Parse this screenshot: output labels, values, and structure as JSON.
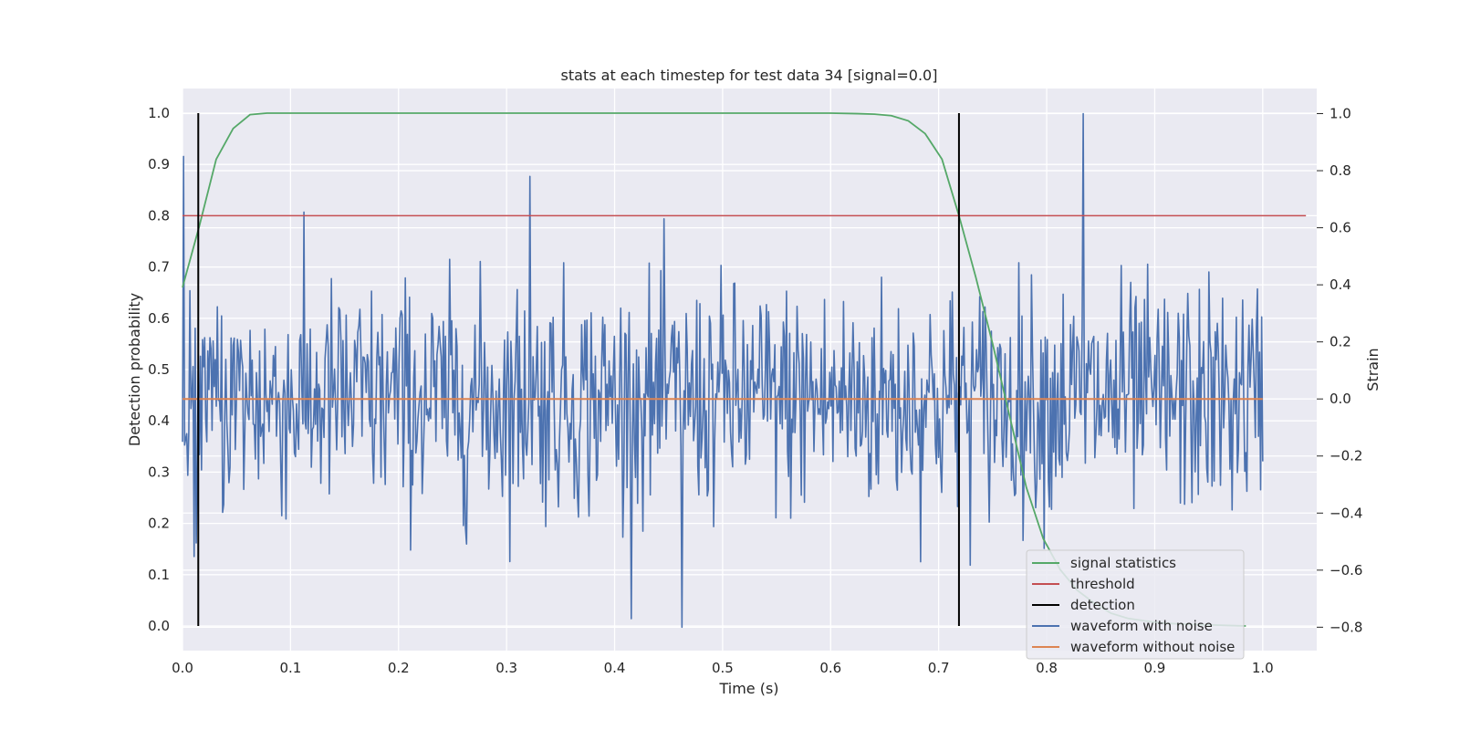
{
  "chart_data": {
    "type": "line",
    "title": "stats at each timestep for test data 34 [signal=0.0]",
    "xlabel": "Time (s)",
    "ylabel": "Detection probability",
    "y2label": "Strain",
    "xlim": [
      0.0,
      1.05
    ],
    "ylim": [
      -0.048,
      1.048
    ],
    "y2lim": [
      -0.882,
      1.088
    ],
    "xticks": [
      "0.0",
      "0.1",
      "0.2",
      "0.3",
      "0.4",
      "0.5",
      "0.6",
      "0.7",
      "0.8",
      "0.9",
      "1.0"
    ],
    "yticks": [
      "0.0",
      "0.1",
      "0.2",
      "0.3",
      "0.4",
      "0.5",
      "0.6",
      "0.7",
      "0.8",
      "0.9",
      "1.0"
    ],
    "y2ticks": [
      "−0.8",
      "−0.6",
      "−0.4",
      "−0.2",
      "0.0",
      "0.2",
      "0.4",
      "0.6",
      "0.8",
      "1.0"
    ],
    "grid": true,
    "legend_position": "lower-right",
    "series": [
      {
        "name": "signal statistics",
        "axis": "left",
        "color": "#55a868",
        "x": [
          0.0,
          0.0156,
          0.0312,
          0.0469,
          0.0625,
          0.0781,
          0.1,
          0.2,
          0.3,
          0.4,
          0.5,
          0.6,
          0.625,
          0.6406,
          0.6562,
          0.6719,
          0.6875,
          0.7031,
          0.7188,
          0.7344,
          0.75,
          0.7656,
          0.7812,
          0.7969,
          0.8125,
          0.8281,
          0.8438,
          0.8594,
          0.875,
          0.8906,
          0.9062,
          0.9219,
          0.9375,
          0.9531,
          0.9688,
          0.9844
        ],
        "y": [
          0.66,
          0.78,
          0.91,
          0.97,
          0.997,
          1.0,
          1.0,
          1.0,
          1.0,
          1.0,
          1.0,
          1.0,
          0.999,
          0.998,
          0.995,
          0.985,
          0.96,
          0.91,
          0.8,
          0.68,
          0.55,
          0.41,
          0.27,
          0.17,
          0.11,
          0.07,
          0.045,
          0.025,
          0.015,
          0.01,
          0.006,
          0.004,
          0.003,
          0.002,
          0.001,
          0.0
        ]
      },
      {
        "name": "threshold",
        "axis": "left",
        "color": "#c44e52",
        "x": [
          0.0,
          1.04
        ],
        "y": [
          0.8,
          0.8
        ]
      },
      {
        "name": "detection",
        "axis": "left",
        "color": "#000000",
        "segments": [
          {
            "x": 0.0146,
            "y0": 0.0,
            "y1": 1.0
          },
          {
            "x": 0.7188,
            "y0": 0.0,
            "y1": 1.0
          }
        ]
      },
      {
        "name": "waveform with noise",
        "axis": "right",
        "color": "#4c72b0",
        "x_start": 0.0,
        "x_end": 1.0,
        "points": 1024,
        "approx_std": 0.2,
        "y_range": [
          -0.8,
          1.0
        ],
        "notable_points": [
          {
            "x": 0.001,
            "y": 0.85
          },
          {
            "x": 0.322,
            "y": 0.78
          },
          {
            "x": 0.462,
            "y": -0.8
          },
          {
            "x": 0.834,
            "y": 1.0
          }
        ]
      },
      {
        "name": "waveform without noise",
        "axis": "right",
        "color": "#dd8452",
        "x": [
          0.0,
          1.0
        ],
        "y": [
          0.0,
          0.0
        ]
      }
    ]
  }
}
